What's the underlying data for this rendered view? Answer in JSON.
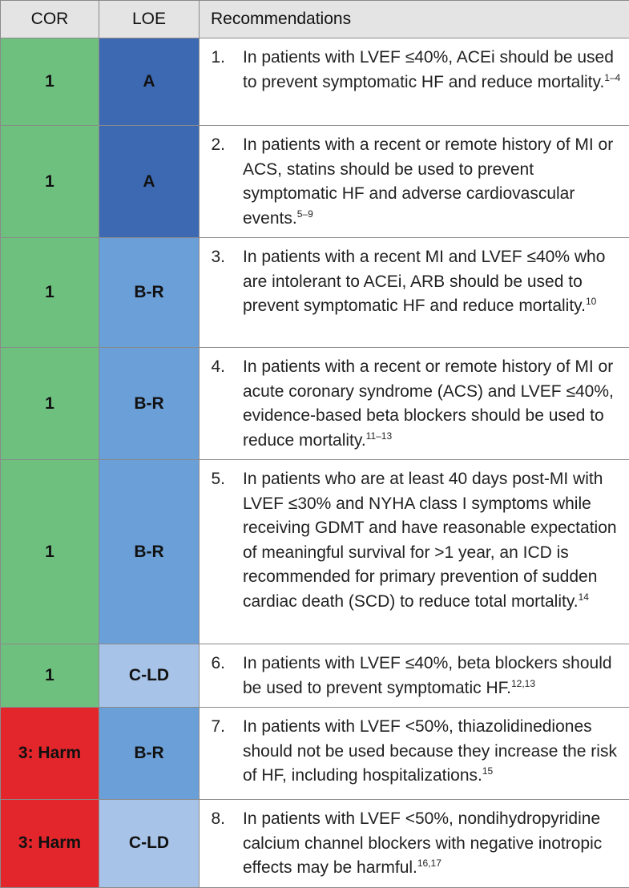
{
  "header": [
    "COR",
    "LOE",
    "Recommendations"
  ],
  "rows": [
    {
      "cor": "1",
      "loe": "A",
      "number": "1.",
      "text": "In patients with LVEF ≤40%, ACEi should be used to prevent symptomatic HF and reduce mortality.",
      "refs": "1–4",
      "cor_color": "#6ec07f",
      "loe_color": "#3d69b3"
    },
    {
      "cor": "1",
      "loe": "A",
      "number": "2.",
      "text": "In patients with a recent or remote history of MI or ACS, statins should be used to prevent symptomatic HF and adverse cardiovascular events.",
      "refs": "5–9",
      "cor_color": "#6ec07f",
      "loe_color": "#3d69b3"
    },
    {
      "cor": "1",
      "loe": "B-R",
      "number": "3.",
      "text": "In patients with a recent MI and LVEF ≤40% who are intolerant to ACEi, ARB should be used to prevent symptomatic HF and reduce mortality.",
      "refs": "10",
      "cor_color": "#6ec07f",
      "loe_color": "#6b9fd8"
    },
    {
      "cor": "1",
      "loe": "B-R",
      "number": "4.",
      "text": "In patients with a recent or remote history of MI or acute coronary syndrome (ACS) and LVEF ≤40%, evidence-based beta blockers should be used to reduce mortality.",
      "refs": "11–13",
      "cor_color": "#6ec07f",
      "loe_color": "#6b9fd8"
    },
    {
      "cor": "1",
      "loe": "B-R",
      "number": "5.",
      "text": "In patients who are at least 40 days post-MI with LVEF ≤30% and NYHA class I symptoms while receiving GDMT and have reasonable expectation of meaningful survival for >1 year, an ICD is recommended for primary prevention of sudden cardiac death (SCD) to reduce total mortality.",
      "refs": "14",
      "cor_color": "#6ec07f",
      "loe_color": "#6b9fd8"
    },
    {
      "cor": "1",
      "loe": "C-LD",
      "number": "6.",
      "text": "In patients with LVEF ≤40%, beta blockers should be used to prevent symptomatic HF.",
      "refs": "12,13",
      "cor_color": "#6ec07f",
      "loe_color": "#a8c3e8"
    },
    {
      "cor": "3: Harm",
      "loe": "B-R",
      "number": "7.",
      "text": "In patients with LVEF <50%, thiazolidinediones should not be used because they increase the risk of HF, including hospitalizations.",
      "refs": "15",
      "cor_color": "#e3262b",
      "loe_color": "#6b9fd8"
    },
    {
      "cor": "3: Harm",
      "loe": "C-LD",
      "number": "8.",
      "text": "In patients with LVEF <50%, nondihydropyridine calcium channel blockers with negative inotropic effects may be harmful.",
      "refs": "16,17",
      "cor_color": "#e3262b",
      "loe_color": "#a8c3e8"
    }
  ]
}
